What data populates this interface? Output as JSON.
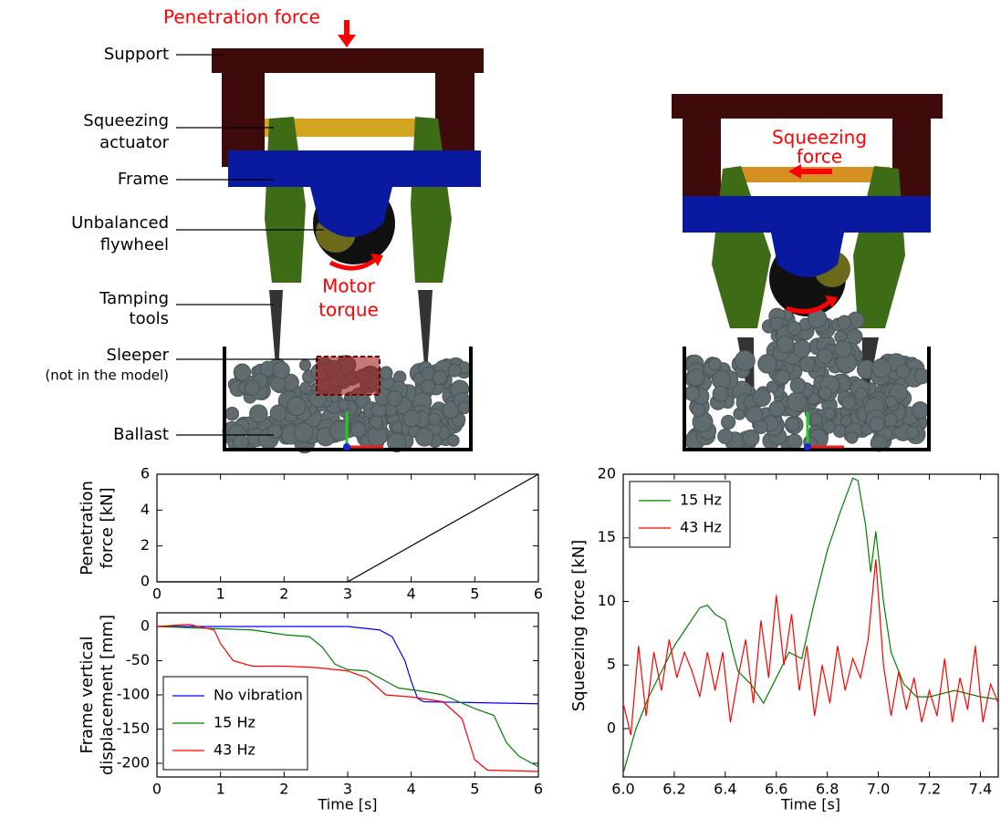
{
  "diagram": {
    "labels": [
      [
        "Support"
      ],
      [
        "Squeezing",
        "actuator"
      ],
      [
        "Frame"
      ],
      [
        "Unbalanced",
        "flywheel"
      ],
      [
        "Tamping",
        "tools"
      ],
      [
        "Sleeper"
      ],
      [
        "(not in the model)"
      ],
      [
        "Ballast"
      ]
    ],
    "penetration_force": "Penetration force",
    "motor_torque": [
      "Motor",
      "torque"
    ],
    "squeezing_force": [
      "Squeezing",
      "force"
    ]
  },
  "chart_data": [
    {
      "type": "line",
      "ylabel": [
        "Penetration",
        "force [kN]"
      ],
      "x": [
        0,
        3,
        6
      ],
      "values": [
        0,
        0,
        6
      ],
      "color": "#000000",
      "xlim": [
        0,
        6
      ],
      "ylim": [
        0,
        6
      ],
      "xticks": [
        0,
        1,
        2,
        3,
        4,
        5,
        6
      ],
      "yticks": [
        0,
        2,
        4,
        6
      ],
      "grid": false
    },
    {
      "type": "line",
      "xlabel": "Time [s]",
      "ylabel": [
        "Frame vertical",
        "displacement [mm]"
      ],
      "xlim": [
        0,
        6
      ],
      "ylim": [
        -220,
        20
      ],
      "xticks": [
        0,
        1,
        2,
        3,
        4,
        5,
        6
      ],
      "yticks": [
        -200,
        -150,
        -100,
        -50,
        0
      ],
      "grid": false,
      "legend": "lower left",
      "series": [
        {
          "name": "No vibration",
          "color": "#0000ff",
          "x": [
            0,
            3,
            3.5,
            3.7,
            3.9,
            4.0,
            4.1,
            4.2,
            6
          ],
          "values": [
            0,
            0,
            -5,
            -15,
            -50,
            -80,
            -105,
            -110,
            -113
          ]
        },
        {
          "name": "15 Hz",
          "color": "#008000",
          "x": [
            0,
            1.5,
            2.0,
            2.4,
            2.6,
            2.8,
            3.0,
            3.3,
            3.6,
            3.8,
            4.2,
            4.5,
            5.0,
            5.3,
            5.5,
            5.7,
            6.0
          ],
          "values": [
            0,
            -5,
            -12,
            -15,
            -30,
            -55,
            -63,
            -65,
            -80,
            -90,
            -95,
            -100,
            -120,
            -130,
            -170,
            -190,
            -205
          ]
        },
        {
          "name": "43 Hz",
          "color": "#ff0000",
          "x": [
            0,
            0.5,
            0.9,
            1.0,
            1.2,
            1.5,
            2.0,
            2.5,
            3.0,
            3.3,
            3.6,
            4.0,
            4.5,
            4.8,
            4.9,
            5.0,
            5.2,
            6
          ],
          "values": [
            0,
            3,
            -5,
            -25,
            -50,
            -58,
            -58,
            -60,
            -65,
            -75,
            -100,
            -103,
            -110,
            -135,
            -165,
            -195,
            -210,
            -212
          ]
        }
      ]
    },
    {
      "type": "line",
      "xlabel": "Time [s]",
      "ylabel": [
        "Squeezing force [kN]"
      ],
      "xlim": [
        6.0,
        7.47
      ],
      "ylim": [
        -3.8,
        20
      ],
      "xticks": [
        {
          "value": 6,
          "label": "6.0"
        },
        6.2,
        6.4,
        6.6,
        6.8,
        {
          "value": 7,
          "label": "7.0"
        },
        7.2,
        7.4
      ],
      "yticks": [
        0,
        5,
        10,
        15,
        20
      ],
      "grid": false,
      "legend": "upper left",
      "series": [
        {
          "name": "15 Hz",
          "color": "#008000",
          "x": [
            6.0,
            6.05,
            6.1,
            6.15,
            6.2,
            6.25,
            6.3,
            6.33,
            6.36,
            6.4,
            6.43,
            6.45,
            6.5,
            6.55,
            6.6,
            6.65,
            6.7,
            6.75,
            6.8,
            6.85,
            6.9,
            6.92,
            6.95,
            6.97,
            6.99,
            7.02,
            7.05,
            7.1,
            7.15,
            7.2,
            7.3,
            7.4,
            7.47
          ],
          "values": [
            -3.5,
            0,
            2.5,
            4.5,
            6.5,
            8,
            9.5,
            9.7,
            9,
            8.5,
            6,
            4.5,
            3.5,
            2,
            4,
            6,
            5.5,
            10,
            14,
            17,
            19.7,
            19.5,
            16,
            12.3,
            15.5,
            10,
            6,
            3.5,
            2.5,
            2.5,
            3,
            2.5,
            2.3
          ]
        },
        {
          "name": "43 Hz",
          "color": "#ff0000",
          "x": [
            6.0,
            6.03,
            6.06,
            6.09,
            6.12,
            6.15,
            6.18,
            6.21,
            6.24,
            6.27,
            6.3,
            6.33,
            6.36,
            6.39,
            6.42,
            6.45,
            6.48,
            6.51,
            6.54,
            6.57,
            6.6,
            6.63,
            6.66,
            6.69,
            6.72,
            6.75,
            6.78,
            6.81,
            6.84,
            6.87,
            6.9,
            6.93,
            6.96,
            6.99,
            7.02,
            7.05,
            7.08,
            7.11,
            7.14,
            7.17,
            7.2,
            7.23,
            7.26,
            7.29,
            7.32,
            7.35,
            7.38,
            7.41,
            7.44,
            7.47
          ],
          "values": [
            2,
            -0.5,
            6.5,
            1,
            6,
            3,
            7,
            4,
            6,
            4.5,
            2.5,
            6,
            3,
            6,
            0.5,
            4,
            7,
            2,
            8.5,
            4,
            10.5,
            5,
            9,
            3,
            6.5,
            1,
            5,
            2,
            6.5,
            3,
            5.5,
            4,
            7,
            13.3,
            5,
            1,
            4.5,
            1.5,
            4,
            0.5,
            3,
            1,
            5.5,
            0.5,
            4,
            1.5,
            6.5,
            0.5,
            3.5,
            2
          ]
        }
      ]
    }
  ]
}
